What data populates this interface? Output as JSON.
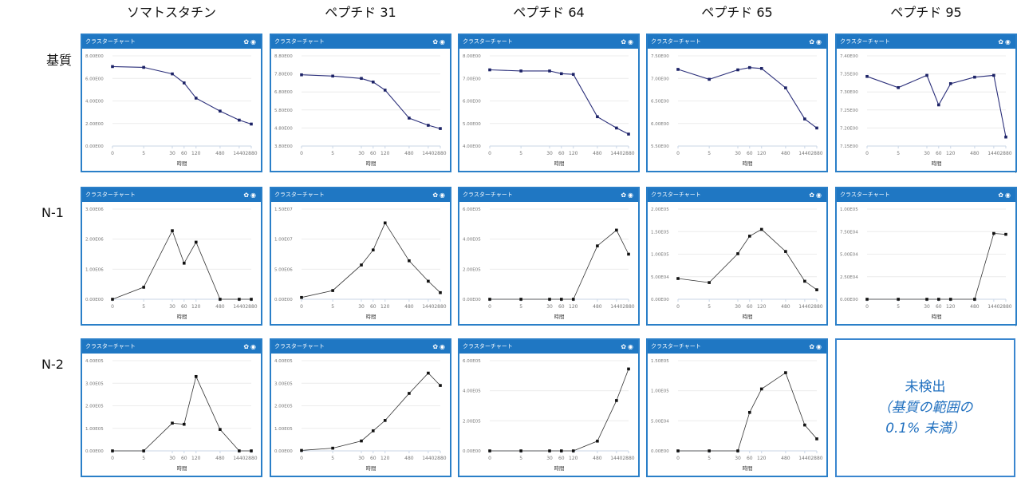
{
  "column_headers": [
    "ソマトスタチン",
    "ペプチド 31",
    "ペプチド 64",
    "ペプチド 65",
    "ペプチド 95"
  ],
  "row_labels": [
    "基質",
    "N-1",
    "N-2"
  ],
  "panel_title": "クラスターチャート",
  "x_ticks": [
    "0",
    "5",
    "30",
    "60",
    "120",
    "480",
    "1440",
    "2880"
  ],
  "x_label": "時間",
  "colors": {
    "header": "#1f77c3",
    "line_substrate": "#2b2f7a",
    "line_product": "#333333"
  },
  "not_detected": {
    "line1": "未検出",
    "line2": "（基質の範囲の",
    "line3": "0.1% 未満）"
  },
  "chart_data": [
    {
      "type": "line",
      "row": 0,
      "col": 0,
      "x": [
        0,
        5,
        30,
        60,
        120,
        480,
        1440,
        2880
      ],
      "values": [
        7.05,
        6.98,
        6.4,
        5.6,
        4.25,
        3.1,
        2.3,
        1.95
      ],
      "ylim": [
        0,
        8
      ],
      "yticks": [
        0,
        2,
        4,
        6,
        8
      ],
      "ytick_labels": [
        "0.00E00",
        "2.00E00",
        "4.00E00",
        "6.00E00",
        "8.00E00"
      ]
    },
    {
      "type": "line",
      "row": 0,
      "col": 1,
      "x": [
        0,
        5,
        30,
        60,
        120,
        480,
        1440,
        2880
      ],
      "values": [
        7.75,
        7.68,
        7.55,
        7.35,
        6.9,
        5.35,
        4.95,
        4.77
      ],
      "ylim": [
        3.8,
        8.8
      ],
      "yticks": [
        3.8,
        4.8,
        5.8,
        6.8,
        7.8,
        8.8
      ],
      "ytick_labels": [
        "3.80E00",
        "4.80E00",
        "5.80E00",
        "6.80E00",
        "7.80E00",
        "8.80E00"
      ]
    },
    {
      "type": "line",
      "row": 0,
      "col": 2,
      "x": [
        0,
        5,
        30,
        60,
        120,
        480,
        1440,
        2880
      ],
      "values": [
        7.38,
        7.33,
        7.33,
        7.21,
        7.18,
        5.3,
        4.8,
        4.53
      ],
      "ylim": [
        4,
        8
      ],
      "yticks": [
        4,
        5,
        6,
        7,
        8
      ],
      "ytick_labels": [
        "4.00E00",
        "5.00E00",
        "6.00E00",
        "7.00E00",
        "8.00E00"
      ]
    },
    {
      "type": "line",
      "row": 0,
      "col": 3,
      "x": [
        0,
        5,
        30,
        60,
        120,
        480,
        1440,
        2880
      ],
      "values": [
        7.2,
        6.98,
        7.19,
        7.24,
        7.22,
        6.79,
        6.1,
        5.9
      ],
      "ylim": [
        5.5,
        7.5
      ],
      "yticks": [
        5.5,
        6.0,
        6.5,
        7.0,
        7.5
      ],
      "ytick_labels": [
        "5.50E00",
        "6.00E00",
        "6.50E00",
        "7.00E00",
        "7.50E00"
      ]
    },
    {
      "type": "line",
      "row": 0,
      "col": 4,
      "x": [
        0,
        5,
        30,
        60,
        120,
        480,
        1440,
        2880
      ],
      "values": [
        7.343,
        7.312,
        7.346,
        7.264,
        7.323,
        7.341,
        7.346,
        7.175
      ],
      "ylim": [
        7.15,
        7.4
      ],
      "yticks": [
        7.15,
        7.2,
        7.25,
        7.3,
        7.35,
        7.4
      ],
      "ytick_labels": [
        "7.15E00",
        "7.20E00",
        "7.25E00",
        "7.30E00",
        "7.35E00",
        "7.40E00"
      ]
    },
    {
      "type": "line",
      "row": 1,
      "col": 0,
      "x": [
        0,
        5,
        30,
        60,
        120,
        480,
        1440,
        2880
      ],
      "values": [
        0,
        400000,
        2280000,
        1200000,
        1900000,
        0,
        0,
        0
      ],
      "ylim": [
        0,
        3000000
      ],
      "yticks": [
        0,
        1000000,
        2000000,
        3000000
      ],
      "ytick_labels": [
        "0.00E00",
        "1.00E06",
        "2.00E06",
        "3.00E06"
      ]
    },
    {
      "type": "line",
      "row": 1,
      "col": 1,
      "x": [
        0,
        5,
        30,
        60,
        120,
        480,
        1440,
        2880
      ],
      "values": [
        300000,
        1450000,
        5700000,
        8200000,
        12700000,
        6400000,
        3000000,
        1100000
      ],
      "ylim": [
        0,
        15000000
      ],
      "yticks": [
        0,
        5000000,
        10000000,
        15000000
      ],
      "ytick_labels": [
        "0.00E00",
        "5.00E06",
        "1.00E07",
        "1.50E07"
      ]
    },
    {
      "type": "line",
      "row": 1,
      "col": 2,
      "x": [
        0,
        5,
        30,
        60,
        120,
        480,
        1440,
        2880
      ],
      "values": [
        0,
        0,
        0,
        0,
        0,
        355000,
        460000,
        300000
      ],
      "ylim": [
        0,
        600000
      ],
      "yticks": [
        0,
        200000,
        400000,
        600000
      ],
      "ytick_labels": [
        "0.00E00",
        "2.00E05",
        "4.00E05",
        "6.00E05"
      ]
    },
    {
      "type": "line",
      "row": 1,
      "col": 3,
      "x": [
        0,
        5,
        30,
        60,
        120,
        480,
        1440,
        2880
      ],
      "values": [
        46000,
        37000,
        101000,
        140000,
        155000,
        106000,
        40000,
        21000
      ],
      "ylim": [
        0,
        200000
      ],
      "yticks": [
        0,
        50000,
        100000,
        150000,
        200000
      ],
      "ytick_labels": [
        "0.00E00",
        "5.00E04",
        "1.00E05",
        "1.50E05",
        "2.00E05"
      ]
    },
    {
      "type": "line",
      "row": 1,
      "col": 4,
      "x": [
        0,
        5,
        30,
        60,
        120,
        480,
        1440,
        2880
      ],
      "values": [
        0,
        0,
        0,
        0,
        0,
        0,
        73000,
        72000
      ],
      "ylim": [
        0,
        100000
      ],
      "yticks": [
        0,
        25000,
        50000,
        75000,
        100000
      ],
      "ytick_labels": [
        "0.00E00",
        "2.50E04",
        "5.00E04",
        "7.50E04",
        "1.00E05"
      ]
    },
    {
      "type": "line",
      "row": 2,
      "col": 0,
      "x": [
        0,
        5,
        30,
        60,
        120,
        480,
        1440,
        2880
      ],
      "values": [
        0,
        0,
        123000,
        118000,
        330000,
        95000,
        0,
        0
      ],
      "ylim": [
        0,
        400000
      ],
      "yticks": [
        0,
        100000,
        200000,
        300000,
        400000
      ],
      "ytick_labels": [
        "0.00E00",
        "1.00E05",
        "2.00E05",
        "3.00E05",
        "4.00E05"
      ]
    },
    {
      "type": "line",
      "row": 2,
      "col": 1,
      "x": [
        0,
        5,
        30,
        60,
        120,
        480,
        1440,
        2880
      ],
      "values": [
        2000,
        12000,
        44000,
        89000,
        135000,
        255000,
        345000,
        290000
      ],
      "ylim": [
        0,
        400000
      ],
      "yticks": [
        0,
        100000,
        200000,
        300000,
        400000
      ],
      "ytick_labels": [
        "0.00E00",
        "1.00E05",
        "2.00E05",
        "3.00E05",
        "4.00E05"
      ]
    },
    {
      "type": "line",
      "row": 2,
      "col": 2,
      "x": [
        0,
        5,
        30,
        60,
        120,
        480,
        1440,
        2880
      ],
      "values": [
        0,
        0,
        0,
        0,
        0,
        65000,
        335000,
        545000
      ],
      "ylim": [
        0,
        600000
      ],
      "yticks": [
        0,
        200000,
        400000,
        600000
      ],
      "ytick_labels": [
        "0.00E00",
        "2.00E05",
        "4.00E05",
        "6.00E05"
      ]
    },
    {
      "type": "line",
      "row": 2,
      "col": 3,
      "x": [
        0,
        5,
        30,
        60,
        120,
        480,
        1440,
        2880
      ],
      "values": [
        0,
        0,
        0,
        64000,
        103000,
        130000,
        43000,
        20000
      ],
      "ylim": [
        0,
        150000
      ],
      "yticks": [
        0,
        50000,
        100000,
        150000
      ],
      "ytick_labels": [
        "0.00E00",
        "5.00E04",
        "1.00E05",
        "1.50E05"
      ]
    }
  ]
}
